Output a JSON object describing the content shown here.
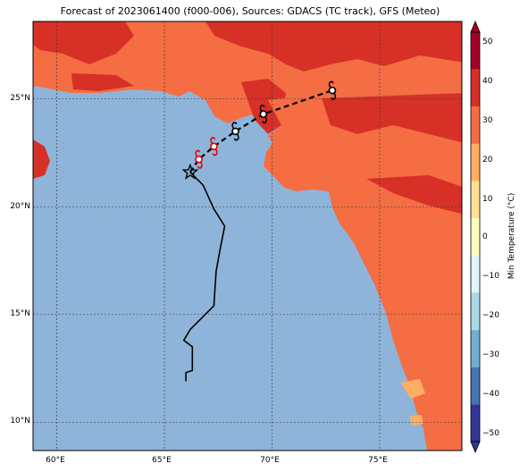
{
  "title": "Forecast of 2023061400 (f000-006), Sources: GDACS (TC track), GFS (Meteo)",
  "map": {
    "lat_ticks": [
      {
        "value": 25,
        "label": "25°N"
      },
      {
        "value": 20,
        "label": "20°N"
      },
      {
        "value": 15,
        "label": "15°N"
      },
      {
        "value": 10,
        "label": "10°N"
      }
    ],
    "lon_ticks": [
      {
        "value": 60,
        "label": "60°E"
      },
      {
        "value": 65,
        "label": "65°E"
      },
      {
        "value": 70,
        "label": "70°E"
      },
      {
        "value": 75,
        "label": "75°E"
      }
    ],
    "colors": {
      "sea": "#8fb4d9",
      "land_warm": "#f46d43",
      "land_hot": "#d73027",
      "land_cool": "#fdae61",
      "coast": "#000000"
    }
  },
  "track": {
    "past_color": "#000000",
    "forecast_color": "#000000",
    "current_marker": "star",
    "current_position": {
      "lon": 66.2,
      "lat": 21.6
    },
    "past_points": [
      {
        "lon": 66.0,
        "lat": 11.9
      },
      {
        "lon": 66.0,
        "lat": 12.3
      },
      {
        "lon": 66.3,
        "lat": 12.4
      },
      {
        "lon": 66.3,
        "lat": 13.5
      },
      {
        "lon": 65.9,
        "lat": 13.8
      },
      {
        "lon": 66.2,
        "lat": 14.3
      },
      {
        "lon": 66.7,
        "lat": 14.8
      },
      {
        "lon": 67.3,
        "lat": 15.4
      },
      {
        "lon": 67.4,
        "lat": 17.0
      },
      {
        "lon": 67.6,
        "lat": 18.1
      },
      {
        "lon": 67.8,
        "lat": 19.1
      },
      {
        "lon": 67.3,
        "lat": 19.9
      },
      {
        "lon": 66.8,
        "lat": 21.0
      },
      {
        "lon": 66.2,
        "lat": 21.6
      }
    ],
    "forecast_points": [
      {
        "lon": 66.2,
        "lat": 21.6,
        "color": "#000000"
      },
      {
        "lon": 66.6,
        "lat": 22.2,
        "color": "#e00000"
      },
      {
        "lon": 67.3,
        "lat": 22.8,
        "color": "#e00000"
      },
      {
        "lon": 68.3,
        "lat": 23.5,
        "color": "#000000"
      },
      {
        "lon": 69.6,
        "lat": 24.3,
        "color": "#000000"
      },
      {
        "lon": 72.8,
        "lat": 25.4,
        "color": "#000000"
      }
    ]
  },
  "colorbar": {
    "label": "Min Temperature (°C)",
    "ticks": [
      "50",
      "40",
      "30",
      "20",
      "10",
      "0",
      "−10",
      "−20",
      "−30",
      "−40",
      "−50"
    ],
    "colors": [
      "#313695",
      "#4575b4",
      "#74add1",
      "#abd9e9",
      "#e0f3f8",
      "#ffffbf",
      "#fee090",
      "#fdae61",
      "#f46d43",
      "#d73027",
      "#a50026"
    ]
  }
}
